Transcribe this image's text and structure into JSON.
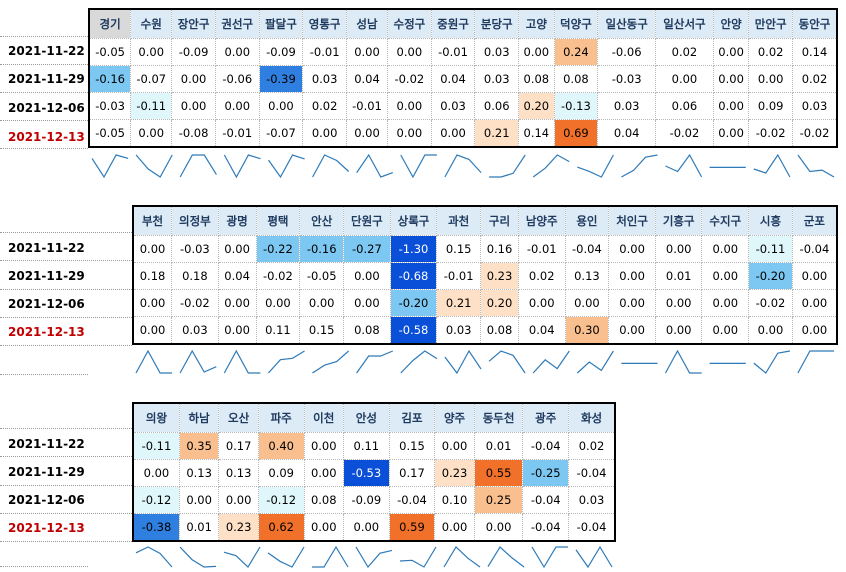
{
  "colors": {
    "header_bg": "#dcebf6",
    "header_gray": "#d9d9d9",
    "date_red": "#c00000",
    "spark": "#2e7ab8",
    "neg1": "#dff6fb",
    "neg2": "#7cc8f2",
    "neg3": "#2f7fe0",
    "neg4": "#0a4fd8",
    "pos1": "#fde0c6",
    "pos2": "#f9bf8e",
    "pos3": "#f2712a"
  },
  "blocks": [
    {
      "regions": [
        "경기",
        "수원",
        "장안구",
        "권선구",
        "팔달구",
        "영통구",
        "성남",
        "수정구",
        "중원구",
        "분당구",
        "고양",
        "덕양구",
        "일산동구",
        "일산서구",
        "안양",
        "만안구",
        "동안구"
      ],
      "dates": [
        "2021-11-22",
        "2021-11-29",
        "2021-12-06",
        "2021-12-13"
      ],
      "rows": [
        [
          "-0.05",
          "0.00",
          "-0.09",
          "0.00",
          "-0.09",
          "-0.01",
          "0.00",
          "0.00",
          "-0.01",
          "0.03",
          "0.00",
          "0.24",
          "-0.06",
          "0.02",
          "0.00",
          "0.02",
          "0.14"
        ],
        [
          "-0.16",
          "-0.07",
          "0.00",
          "-0.06",
          "-0.39",
          "0.03",
          "0.04",
          "-0.02",
          "0.04",
          "0.03",
          "0.08",
          "0.08",
          "-0.03",
          "0.00",
          "0.00",
          "0.00",
          "0.02"
        ],
        [
          "-0.03",
          "-0.11",
          "0.00",
          "0.00",
          "0.00",
          "0.02",
          "-0.01",
          "0.00",
          "0.03",
          "0.06",
          "0.20",
          "-0.13",
          "0.03",
          "0.06",
          "0.00",
          "0.09",
          "0.03"
        ],
        [
          "-0.05",
          "0.00",
          "-0.08",
          "-0.01",
          "-0.07",
          "0.00",
          "0.00",
          "0.00",
          "0.00",
          "0.21",
          "0.14",
          "0.69",
          "0.04",
          "-0.02",
          "0.00",
          "-0.02",
          "-0.02"
        ]
      ]
    },
    {
      "regions": [
        "부천",
        "의정부",
        "광명",
        "평택",
        "안산",
        "단원구",
        "상록구",
        "과천",
        "구리",
        "남양주",
        "용인",
        "처인구",
        "기흥구",
        "수지구",
        "시흥",
        "군포"
      ],
      "dates": [
        "2021-11-22",
        "2021-11-29",
        "2021-12-06",
        "2021-12-13"
      ],
      "rows": [
        [
          "0.00",
          "-0.03",
          "0.00",
          "-0.22",
          "-0.16",
          "-0.27",
          "-1.30",
          "0.15",
          "0.16",
          "-0.01",
          "-0.04",
          "0.00",
          "0.00",
          "0.00",
          "-0.11",
          "-0.04"
        ],
        [
          "0.18",
          "0.18",
          "0.04",
          "-0.02",
          "-0.05",
          "0.00",
          "-0.68",
          "-0.01",
          "0.23",
          "0.02",
          "0.13",
          "0.00",
          "0.01",
          "0.00",
          "-0.20",
          "0.00"
        ],
        [
          "0.00",
          "-0.02",
          "0.00",
          "0.00",
          "0.00",
          "0.00",
          "-0.20",
          "0.21",
          "0.20",
          "0.00",
          "0.00",
          "0.00",
          "0.00",
          "0.00",
          "-0.02",
          "0.00"
        ],
        [
          "0.00",
          "0.03",
          "0.00",
          "0.11",
          "0.15",
          "0.08",
          "-0.58",
          "0.03",
          "0.08",
          "0.04",
          "0.30",
          "0.00",
          "0.00",
          "0.00",
          "0.00",
          "0.00"
        ]
      ]
    },
    {
      "regions": [
        "의왕",
        "하남",
        "오산",
        "파주",
        "이천",
        "안성",
        "김포",
        "양주",
        "동두천",
        "광주",
        "화성"
      ],
      "dates": [
        "2021-11-22",
        "2021-11-29",
        "2021-12-06",
        "2021-12-13"
      ],
      "rows": [
        [
          "-0.11",
          "0.35",
          "0.17",
          "0.40",
          "0.00",
          "0.11",
          "0.15",
          "0.00",
          "0.01",
          "-0.04",
          "0.02"
        ],
        [
          "0.00",
          "0.13",
          "0.13",
          "0.09",
          "0.00",
          "-0.53",
          "0.17",
          "0.23",
          "0.55",
          "-0.25",
          "-0.04"
        ],
        [
          "-0.12",
          "0.00",
          "0.00",
          "-0.12",
          "0.08",
          "-0.09",
          "-0.04",
          "0.10",
          "0.25",
          "-0.04",
          "0.03"
        ],
        [
          "-0.38",
          "0.01",
          "0.23",
          "0.62",
          "0.00",
          "0.00",
          "0.59",
          "0.00",
          "0.00",
          "-0.04",
          "-0.04"
        ]
      ]
    }
  ]
}
